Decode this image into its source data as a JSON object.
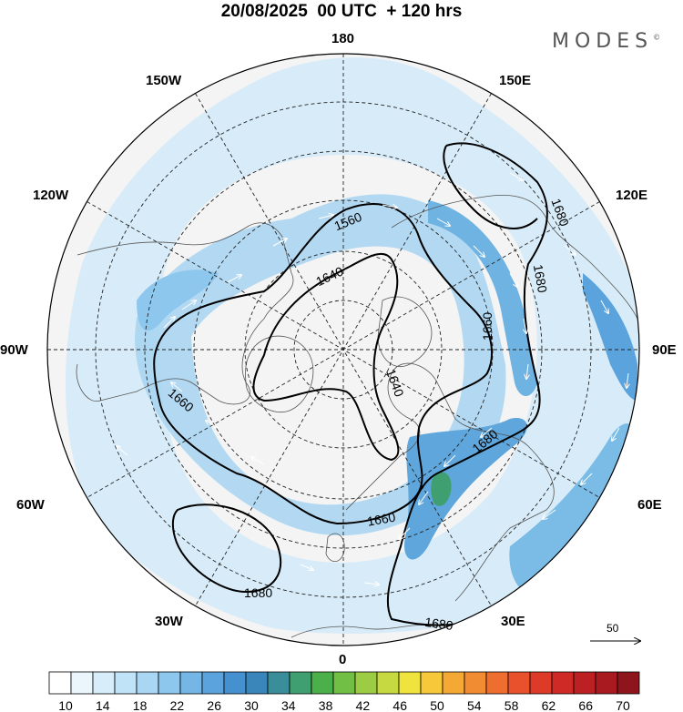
{
  "title": "20/08/2025  00 UTC  + 120 hrs",
  "brand": "MODES",
  "brand_mark": "©",
  "longitude_labels": {
    "lon_180": "180",
    "lon_150w": "150W",
    "lon_150e": "150E",
    "lon_120w": "120W",
    "lon_120e": "120E",
    "lon_90w": "90W",
    "lon_90e": "90E",
    "lon_60w": "60W",
    "lon_60e": "60E",
    "lon_30w": "30W",
    "lon_30e": "30E",
    "lon_0": "0"
  },
  "contour_labels": [
    "1560",
    "1640",
    "1640",
    "1660",
    "1660",
    "1660",
    "1680",
    "1680",
    "1680",
    "1680",
    "1680"
  ],
  "reference_vector": "50",
  "colorbar": {
    "tick_labels": [
      "10",
      "14",
      "18",
      "22",
      "26",
      "30",
      "34",
      "38",
      "42",
      "46",
      "50",
      "54",
      "58",
      "62",
      "66",
      "70"
    ],
    "colors": [
      "#ffffff",
      "#eaf5fc",
      "#d7edfa",
      "#c1e3f7",
      "#a8d6f3",
      "#8ec7ee",
      "#74b6e6",
      "#5aa3dc",
      "#4590cf",
      "#3a86bb",
      "#3a8e9a",
      "#3f9f70",
      "#4cb04a",
      "#72bf45",
      "#9ccc43",
      "#c6d940",
      "#efe33d",
      "#f6c83a",
      "#f5a935",
      "#f28c32",
      "#ee6e2f",
      "#e8512c",
      "#de3a28",
      "#cf2a25",
      "#bd2023",
      "#a81a20",
      "#8f151c"
    ]
  },
  "legend": {
    "color_quantity": "wind speed shading (10–70)",
    "contours": "geopotential height"
  }
}
